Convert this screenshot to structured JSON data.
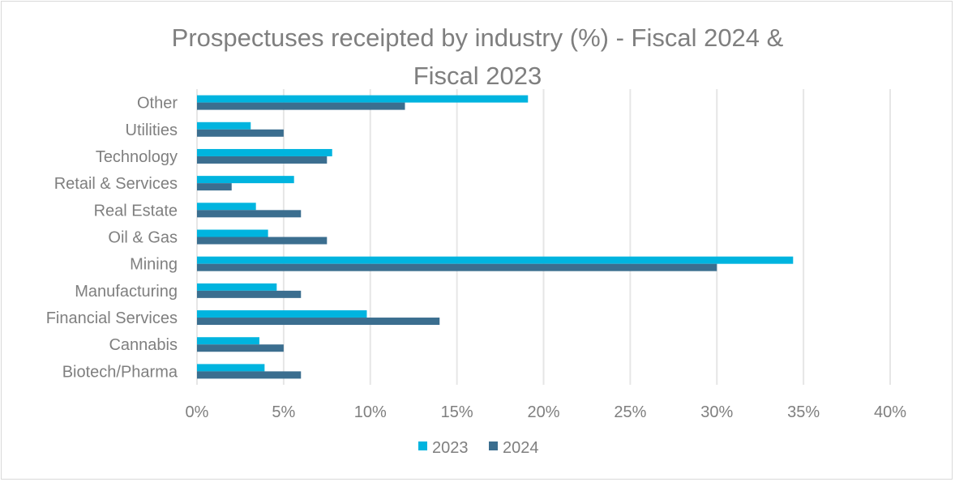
{
  "chart_data": {
    "type": "bar",
    "orientation": "horizontal",
    "title_lines": [
      "Prospectuses receipted by industry (%) - Fiscal 2024 &",
      "Fiscal 2023"
    ],
    "categories": [
      "Biotech/Pharma",
      "Cannabis",
      "Financial Services",
      "Manufacturing",
      "Mining",
      "Oil & Gas",
      "Real Estate",
      "Retail & Services",
      "Technology",
      "Utilities",
      "Other"
    ],
    "series": [
      {
        "name": "2023",
        "color": "#00B4DF",
        "values": [
          3.9,
          3.6,
          9.8,
          4.6,
          34.4,
          4.1,
          3.4,
          5.6,
          7.8,
          3.1,
          19.1
        ]
      },
      {
        "name": "2024",
        "color": "#3B6E8F",
        "values": [
          6.0,
          5.0,
          14.0,
          6.0,
          30.0,
          7.5,
          6.0,
          2.0,
          7.5,
          5.0,
          12.0
        ]
      }
    ],
    "xlim": [
      0,
      40
    ],
    "xticks": [
      "0%",
      "5%",
      "10%",
      "15%",
      "20%",
      "25%",
      "30%",
      "35%",
      "40%"
    ],
    "grid": true,
    "legend_position": "bottom"
  }
}
